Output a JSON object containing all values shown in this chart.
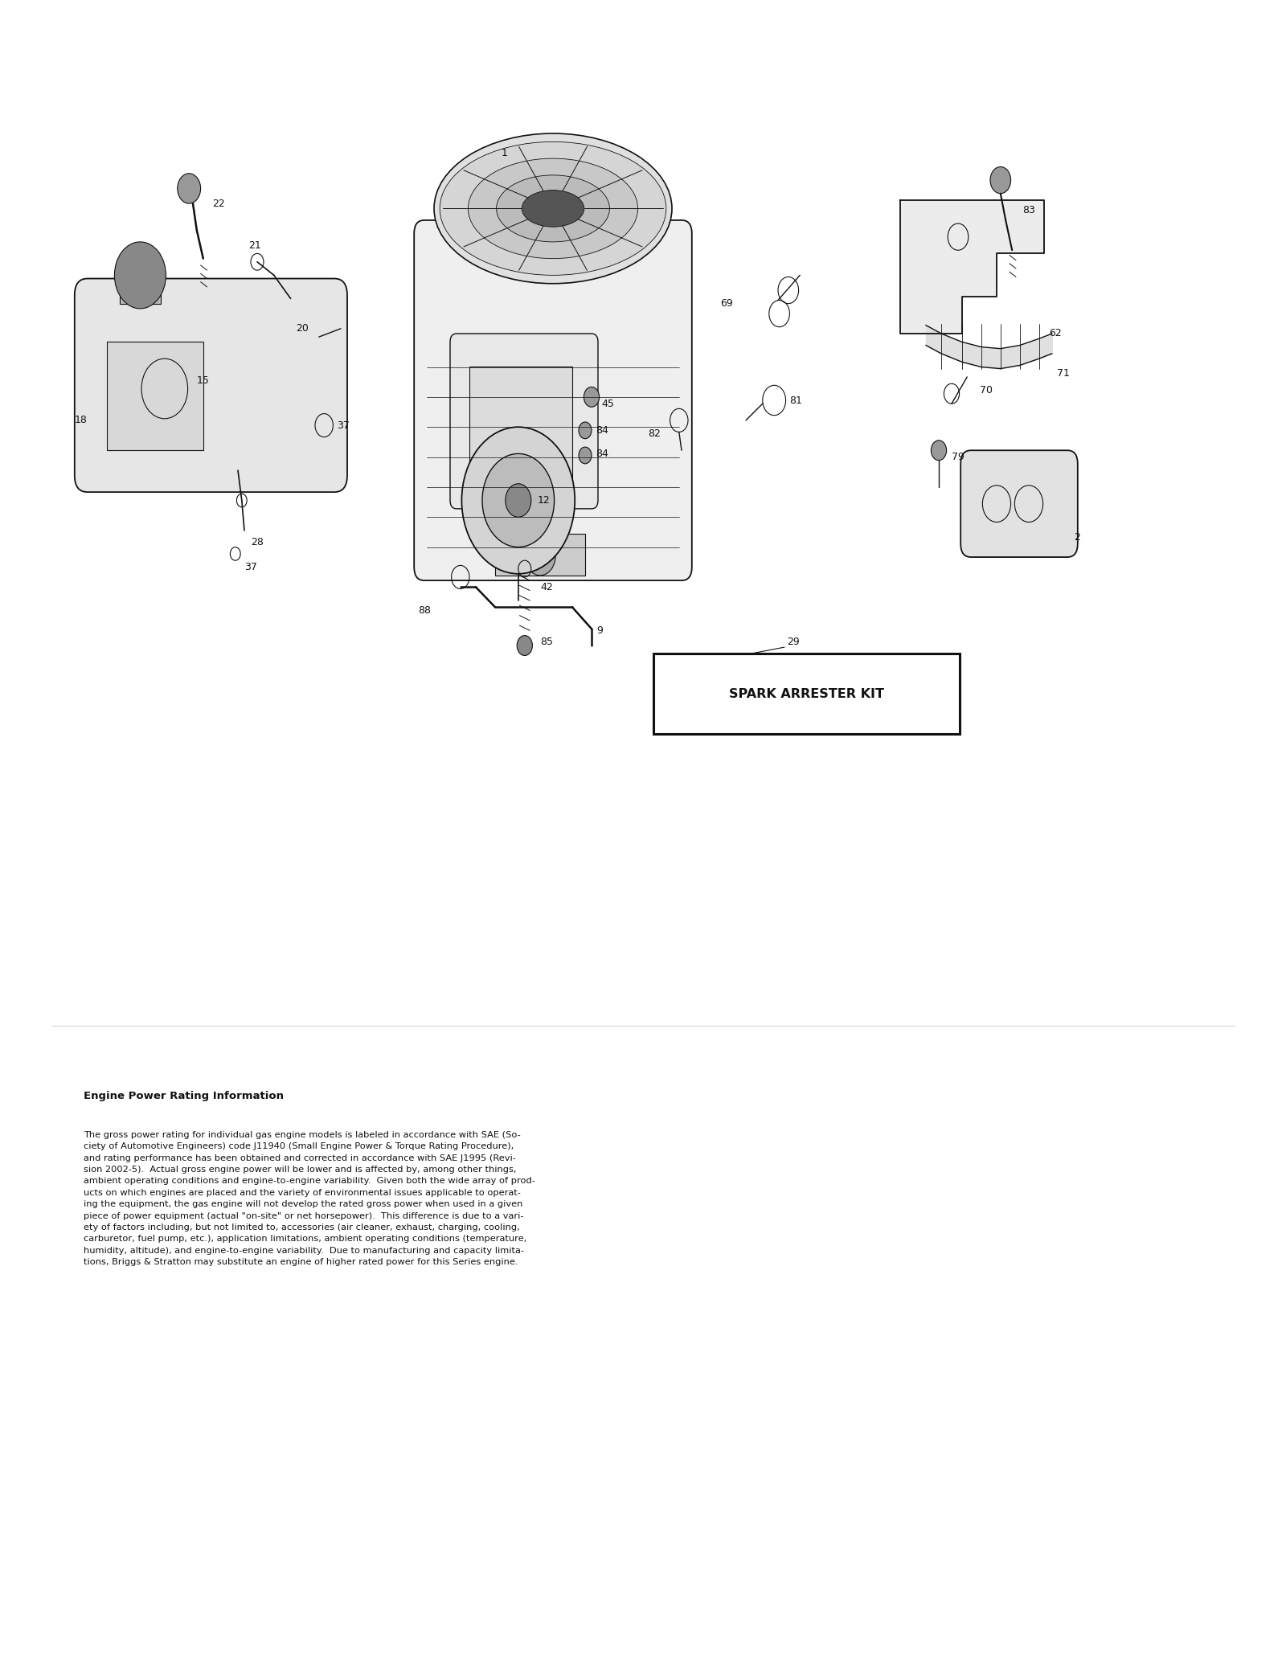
{
  "bg_color": "#ffffff",
  "spark_arrester_label": "SPARK ARRESTER KIT",
  "engine_power_title": "Engine Power Rating Information",
  "engine_power_text": "The gross power rating for individual gas engine models is labeled in accordance with SAE (So-\nciety of Automotive Engineers) code J11940 (Small Engine Power & Torque Rating Procedure),\nand rating performance has been obtained and corrected in accordance with SAE J1995 (Revi-\nsion 2002-5).  Actual gross engine power will be lower and is affected by, among other things,\nambient operating conditions and engine-to-engine variability.  Given both the wide array of prod-\nucts on which engines are placed and the variety of environmental issues applicable to operat-\ning the equipment, the gas engine will not develop the rated gross power when used in a given\npiece of power equipment (actual \"on-site\" or net horsepower).  This difference is due to a vari-\nety of factors including, but not limited to, accessories (air cleaner, exhaust, charging, cooling,\ncarburetor, fuel pump, etc.), application limitations, ambient operating conditions (temperature,\nhumidity, altitude), and engine-to-engine variability.  Due to manufacturing and capacity limita-\ntions, Briggs & Stratton may substitute an engine of higher rated power for this Series engine.",
  "line_color": "#111111",
  "label_fontsize": 9
}
